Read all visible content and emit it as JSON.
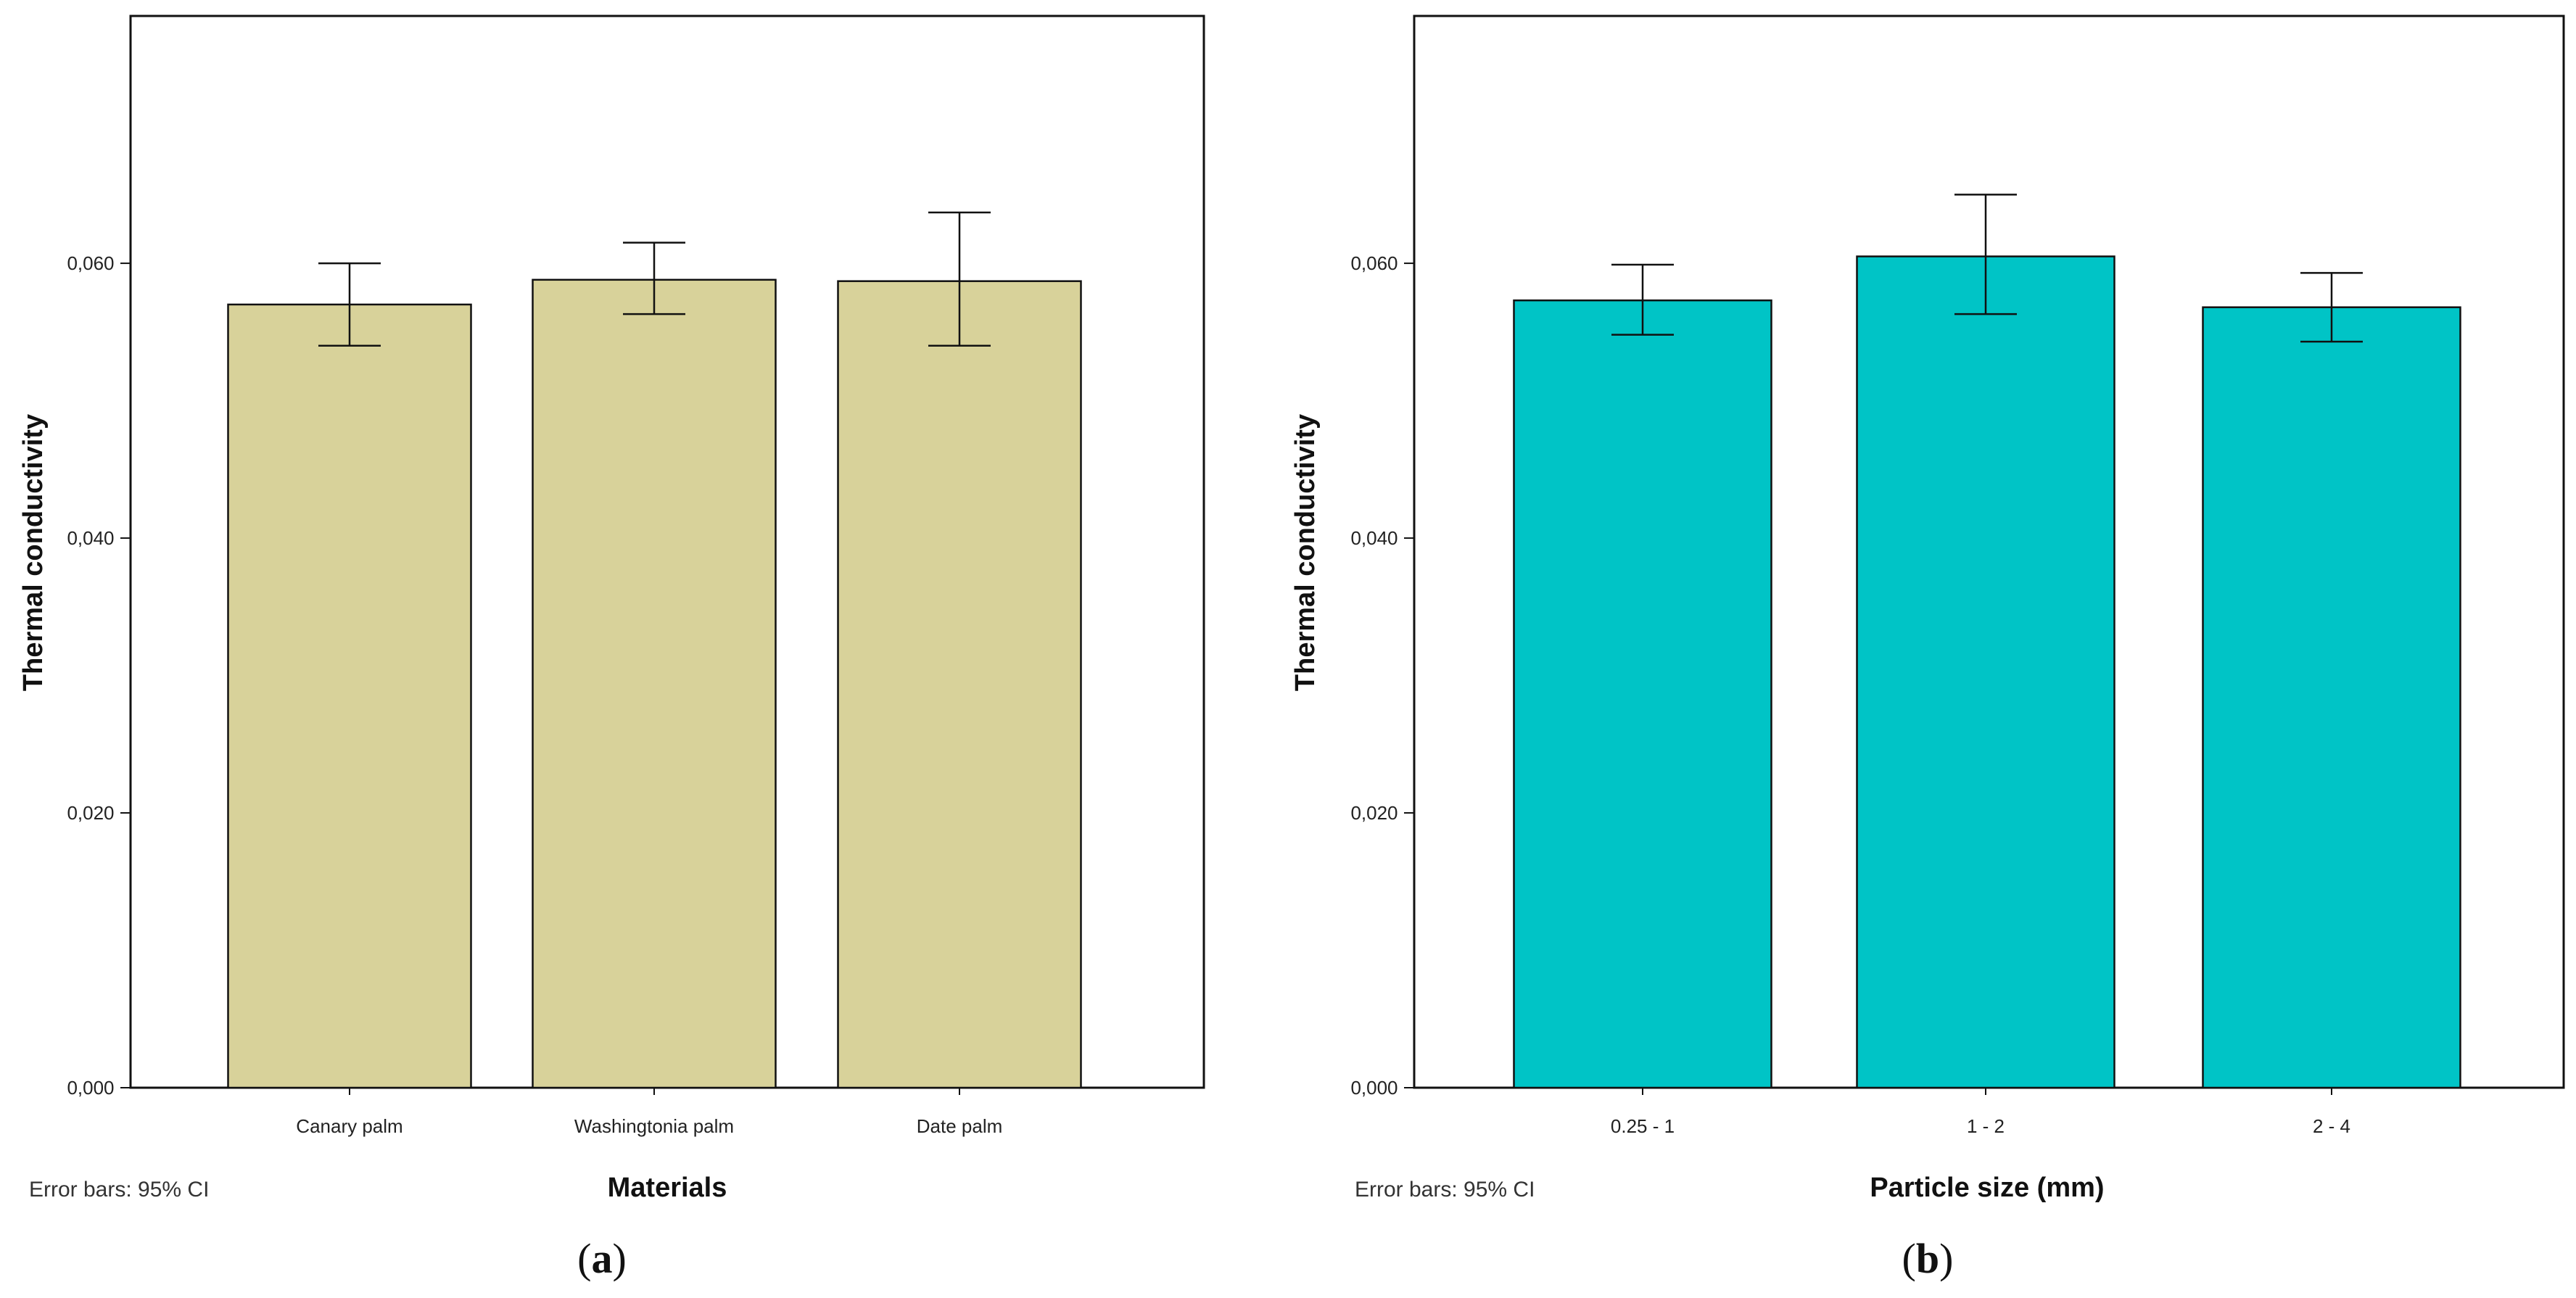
{
  "chart_data": [
    {
      "type": "bar",
      "panel_label": "a",
      "title": "",
      "xlabel": "Materials",
      "ylabel": "Thermal conductivity",
      "categories": [
        "Canary palm",
        "Washingtonia palm",
        "Date palm"
      ],
      "values": [
        0.057,
        0.0588,
        0.0587
      ],
      "ci_lower": [
        0.054,
        0.0563,
        0.054
      ],
      "ci_upper": [
        0.06,
        0.0615,
        0.0637
      ],
      "ylim": [
        0,
        0.078
      ],
      "yticks": [
        0.0,
        0.02,
        0.04,
        0.06
      ],
      "ytick_labels": [
        "0,000",
        "0,020",
        "0,040",
        "0,060"
      ],
      "error_bar_note": "Error bars: 95% CI",
      "bar_color": "#d8d29a",
      "grid": false
    },
    {
      "type": "bar",
      "panel_label": "b",
      "title": "",
      "xlabel": "Particle size (mm)",
      "ylabel": "Thermal conductivity",
      "categories": [
        "0.25 - 1",
        "1 - 2",
        "2 - 4"
      ],
      "values": [
        0.0573,
        0.0605,
        0.0568
      ],
      "ci_lower": [
        0.0548,
        0.0563,
        0.0543
      ],
      "ci_upper": [
        0.0599,
        0.065,
        0.0593
      ],
      "ylim": [
        0,
        0.078
      ],
      "yticks": [
        0.0,
        0.02,
        0.04,
        0.06
      ],
      "ytick_labels": [
        "0,000",
        "0,020",
        "0,040",
        "0,060"
      ],
      "error_bar_note": "Error bars: 95% CI",
      "bar_color": "#00c4c6",
      "grid": false
    }
  ]
}
